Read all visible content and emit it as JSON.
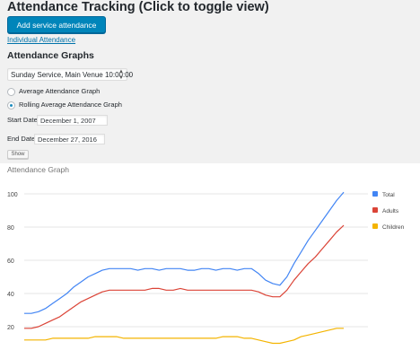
{
  "page": {
    "title": "Attendance Tracking (Click to toggle view)",
    "add_button": "Add service attendance",
    "individual_link": "Individual Attendance",
    "graphs_heading": "Attendance Graphs"
  },
  "form": {
    "service_select": "Sunday Service, Main Venue 10:00:00",
    "radio_average": "Average Attendance Graph",
    "radio_rolling": "Rolling Average Attendance Graph",
    "selected_radio": "rolling",
    "start_label": "Start Date:",
    "start_value": "December 1, 2007",
    "end_label": "End Date:",
    "end_value": "December 27, 2016",
    "show_button": "Show"
  },
  "colors": {
    "total": "#4285f4",
    "adults": "#db4437",
    "children": "#f4b400",
    "primary_button": "#0085ba"
  },
  "chart_data": {
    "type": "line",
    "title": "Attendance Graph",
    "ylim": [
      0,
      110
    ],
    "yticks": [
      20,
      40,
      60,
      80,
      100
    ],
    "legend_position": "right",
    "x": [
      0,
      1,
      2,
      3,
      4,
      5,
      6,
      7,
      8,
      9,
      10,
      11,
      12,
      13,
      14,
      15,
      16,
      17,
      18,
      19,
      20,
      21,
      22,
      23,
      24,
      25,
      26,
      27,
      28,
      29,
      30,
      31,
      32,
      33,
      34,
      35,
      36,
      37,
      38,
      39,
      40,
      41,
      42,
      43,
      44,
      45
    ],
    "series": [
      {
        "name": "Total",
        "values": [
          28,
          28,
          29,
          31,
          34,
          37,
          40,
          44,
          47,
          50,
          52,
          54,
          55,
          55,
          55,
          55,
          54,
          55,
          55,
          54,
          55,
          55,
          55,
          54,
          54,
          55,
          55,
          54,
          55,
          55,
          54,
          55,
          55,
          52,
          48,
          46,
          45,
          50,
          58,
          65,
          72,
          78,
          84,
          90,
          96,
          101
        ]
      },
      {
        "name": "Adults",
        "values": [
          19,
          19,
          20,
          22,
          24,
          26,
          29,
          32,
          35,
          37,
          39,
          41,
          42,
          42,
          42,
          42,
          42,
          42,
          43,
          43,
          42,
          42,
          43,
          42,
          42,
          42,
          42,
          42,
          42,
          42,
          42,
          42,
          42,
          41,
          39,
          38,
          38,
          42,
          48,
          53,
          58,
          62,
          67,
          72,
          77,
          81
        ]
      },
      {
        "name": "Children",
        "values": [
          12,
          12,
          12,
          12,
          13,
          13,
          13,
          13,
          13,
          13,
          14,
          14,
          14,
          14,
          13,
          13,
          13,
          13,
          13,
          13,
          13,
          13,
          13,
          13,
          13,
          13,
          13,
          13,
          14,
          14,
          14,
          13,
          13,
          12,
          11,
          10,
          10,
          11,
          12,
          14,
          15,
          16,
          17,
          18,
          19,
          19
        ]
      }
    ]
  }
}
